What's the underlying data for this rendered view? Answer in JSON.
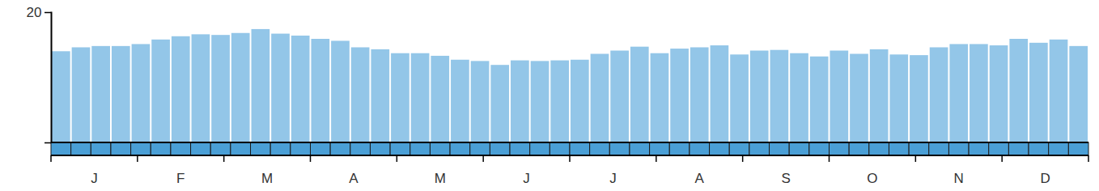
{
  "chart_data": {
    "type": "bar",
    "categories": [
      null,
      null,
      null,
      null,
      null,
      null,
      null,
      null,
      null,
      null,
      null,
      null,
      null,
      null,
      null,
      null,
      null,
      null,
      null,
      null,
      null,
      null,
      null,
      null,
      null,
      null,
      null,
      null,
      null,
      null,
      null,
      null,
      null,
      null,
      null,
      null,
      null,
      null,
      null,
      null,
      null,
      null,
      null,
      null,
      null,
      null,
      null,
      null,
      null,
      null,
      null,
      null
    ],
    "values": [
      14.0,
      14.6,
      14.8,
      14.8,
      15.1,
      15.8,
      16.3,
      16.6,
      16.5,
      16.8,
      17.4,
      16.7,
      16.4,
      15.9,
      15.6,
      14.6,
      14.3,
      13.7,
      13.7,
      13.3,
      12.7,
      12.5,
      11.9,
      12.6,
      12.5,
      12.6,
      12.7,
      13.6,
      14.1,
      14.7,
      13.7,
      14.4,
      14.6,
      14.9,
      13.5,
      14.1,
      14.2,
      13.7,
      13.2,
      14.1,
      13.6,
      14.3,
      13.5,
      13.4,
      14.6,
      15.1,
      15.1,
      14.9,
      15.9,
      15.3,
      15.8,
      14.8
    ],
    "x_labels": [
      "J",
      "F",
      "M",
      "A",
      "M",
      "J",
      "J",
      "A",
      "S",
      "O",
      "N",
      "D"
    ],
    "color": "#93c6e8",
    "ylim": [
      0,
      20
    ],
    "yticks": [
      20
    ],
    "grid": false,
    "tick_labels": "y"
  }
}
